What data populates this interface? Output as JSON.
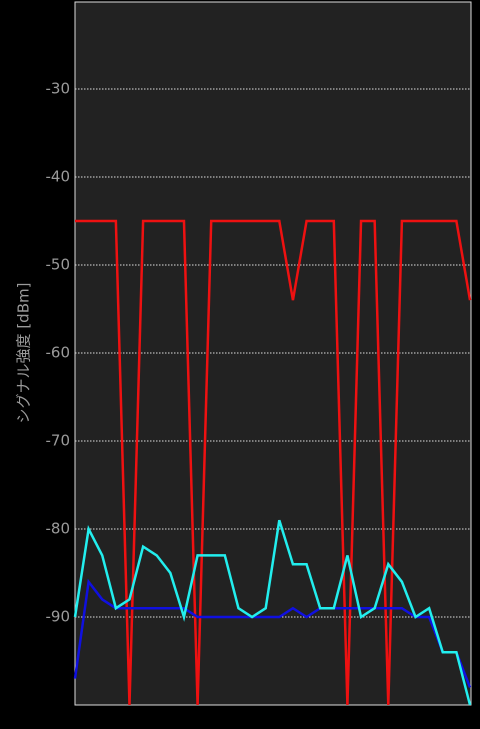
{
  "chart_data": {
    "type": "line",
    "y_label": "シグナル強度 [dBm]",
    "ylim": [
      -100,
      -20
    ],
    "yticks": [
      -30,
      -40,
      -50,
      -60,
      -70,
      -80,
      -90
    ],
    "grid": true,
    "series": [
      {
        "color": "#ee1111",
        "values": [
          -45,
          -45,
          -45,
          -45,
          -100,
          -45,
          -45,
          -45,
          -45,
          -100,
          -45,
          -45,
          -45,
          -45,
          -45,
          -45,
          -54,
          -45,
          -45,
          -45,
          -100,
          -45,
          -45,
          -100,
          -45,
          -45,
          -45,
          -45,
          -45,
          -54
        ]
      },
      {
        "color": "#1010e0",
        "values": [
          -97,
          -86,
          -88,
          -89,
          -89,
          -89,
          -89,
          -89,
          -89,
          -90,
          -90,
          -90,
          -90,
          -90,
          -90,
          -90,
          -89,
          -90,
          -89,
          -89,
          -89,
          -89,
          -89,
          -89,
          -89,
          -90,
          -90,
          -94,
          -94,
          -98
        ]
      },
      {
        "color": "#22eeee",
        "values": [
          -90,
          -80,
          -83,
          -89,
          -88,
          -82,
          -83,
          -85,
          -90,
          -83,
          -83,
          -83,
          -89,
          -90,
          -89,
          -79,
          -84,
          -84,
          -89,
          -89,
          -83,
          -90,
          -89,
          -84,
          -86,
          -90,
          -89,
          -94,
          -94,
          -100
        ]
      }
    ]
  }
}
